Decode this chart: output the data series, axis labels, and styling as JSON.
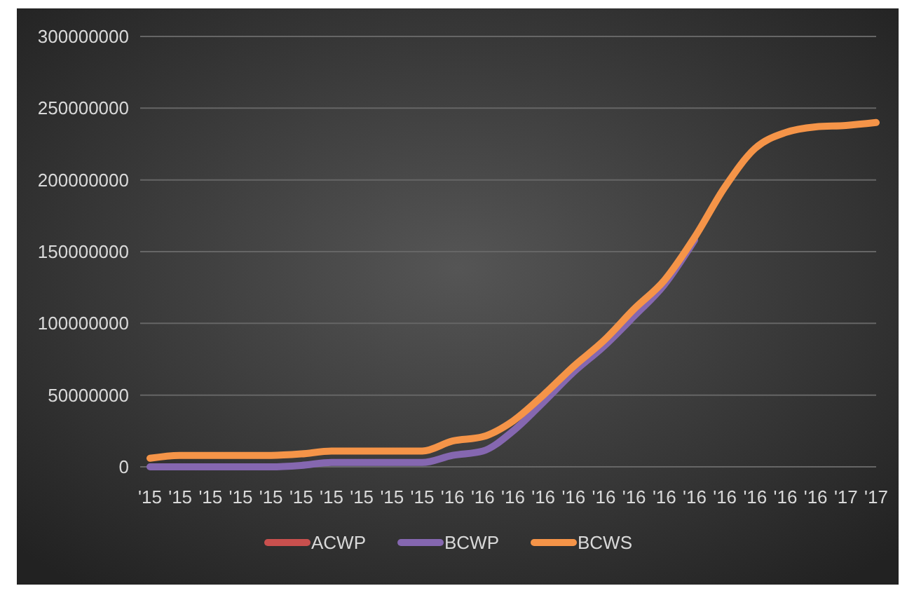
{
  "chart_data": {
    "type": "line",
    "categories": [
      "'15",
      "'15",
      "'15",
      "'15",
      "'15",
      "'15",
      "'15",
      "'15",
      "'15",
      "'15",
      "'16",
      "'16",
      "'16",
      "'16",
      "'16",
      "'16",
      "'16",
      "'16",
      "'16",
      "'16",
      "'16",
      "'16",
      "'16",
      "'17",
      "'17"
    ],
    "series": [
      {
        "name": "ACWP",
        "color": "#c9504e",
        "values": [
          null,
          null,
          null,
          null,
          null,
          null,
          null,
          null,
          null,
          null,
          null,
          null,
          null,
          null,
          null,
          null,
          null,
          null,
          null,
          null,
          null,
          null,
          null,
          null,
          null
        ]
      },
      {
        "name": "BCWP",
        "color": "#8567b0",
        "values": [
          0,
          0,
          0,
          0,
          0,
          1000000,
          3000000,
          3000000,
          3000000,
          3000000,
          8000000,
          11000000,
          25000000,
          45000000,
          66000000,
          84000000,
          105000000,
          127000000,
          158000000,
          null,
          null,
          null,
          null,
          null,
          null
        ]
      },
      {
        "name": "BCWS",
        "color": "#f59448",
        "values": [
          6000000,
          8000000,
          8000000,
          8000000,
          8000000,
          9000000,
          11000000,
          11000000,
          11000000,
          11000000,
          18000000,
          21000000,
          32000000,
          50000000,
          70000000,
          88000000,
          110000000,
          130000000,
          160000000,
          195000000,
          222000000,
          233000000,
          237000000,
          238000000,
          240000000
        ]
      }
    ],
    "ylim": [
      0,
      300000000
    ],
    "yticks": [
      0,
      50000000,
      100000000,
      150000000,
      200000000,
      250000000,
      300000000
    ],
    "grid": "y",
    "legend": "bottom"
  }
}
